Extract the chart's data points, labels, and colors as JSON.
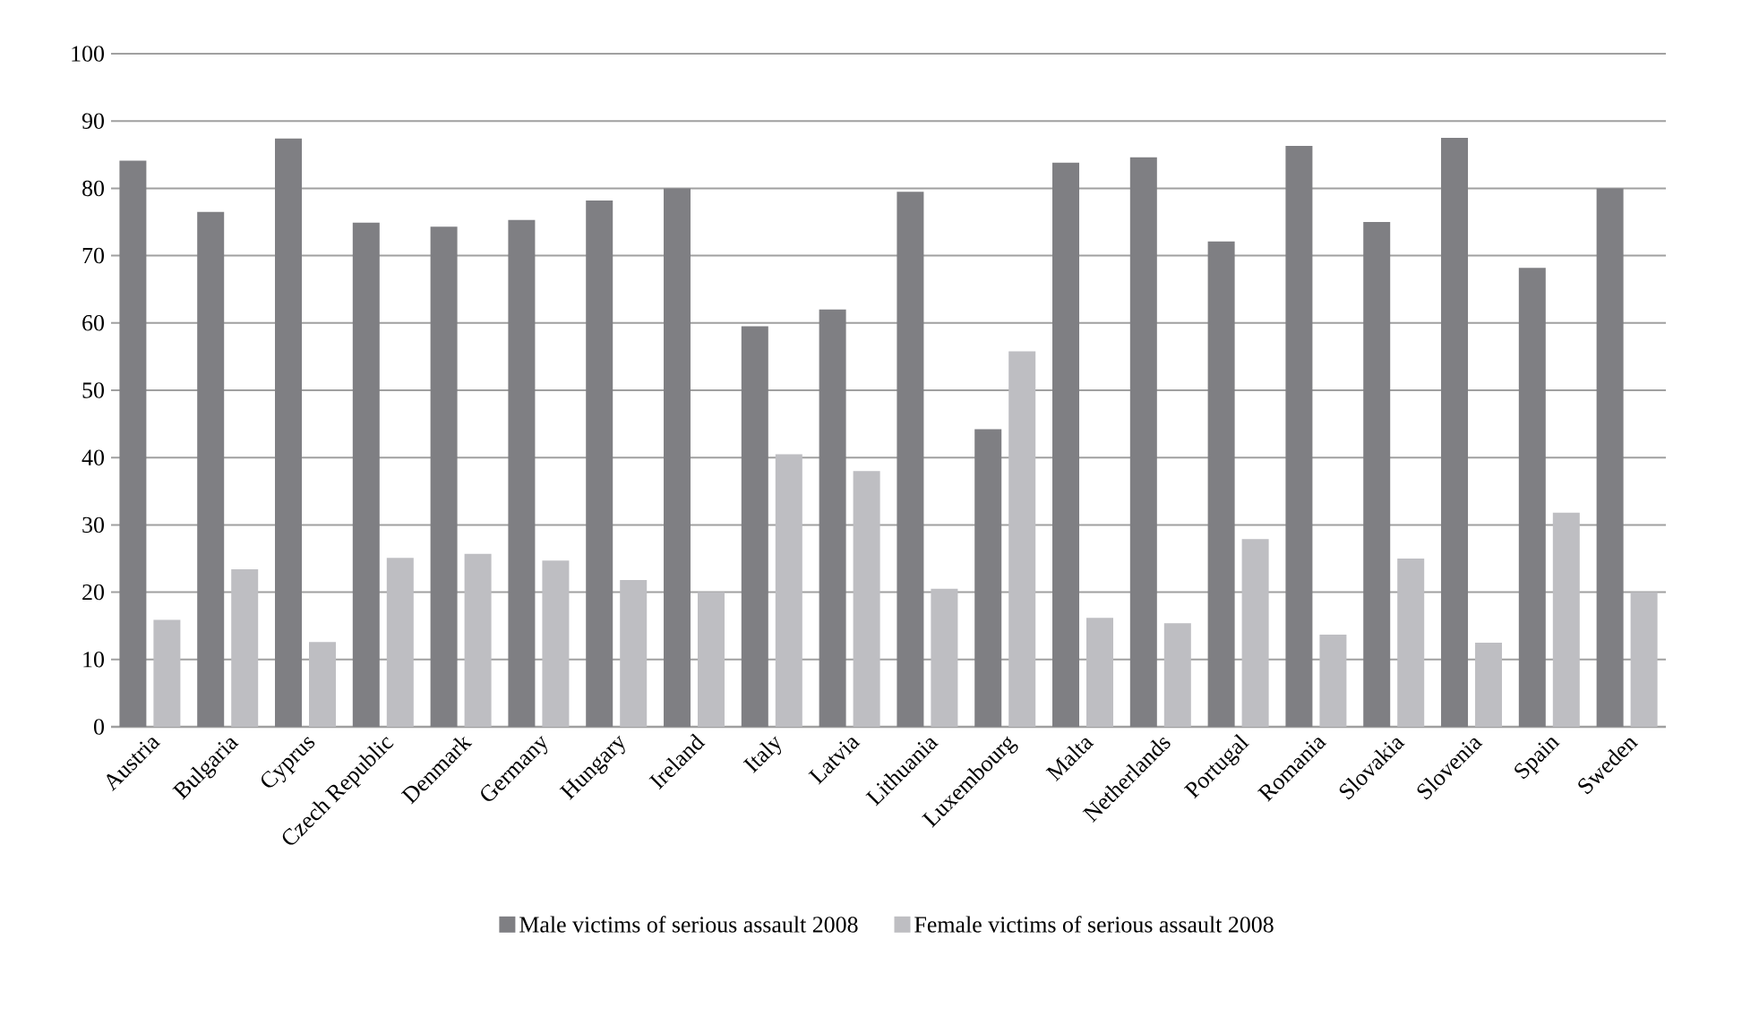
{
  "chart_data": {
    "type": "bar",
    "categories": [
      "Austria",
      "Bulgaria",
      "Cyprus",
      "Czech Republic",
      "Denmark",
      "Germany",
      "Hungary",
      "Ireland",
      "Italy",
      "Latvia",
      "Lithuania",
      "Luxembourg",
      "Malta",
      "Netherlands",
      "Portugal",
      "Romania",
      "Slovakia",
      "Slovenia",
      "Spain",
      "Sweden"
    ],
    "series": [
      {
        "name": "Male victims of serious assault 2008",
        "color": "#7f7f83",
        "values": [
          84.1,
          76.5,
          87.4,
          74.9,
          74.3,
          75.3,
          78.2,
          80.0,
          59.5,
          62.0,
          79.5,
          44.2,
          83.8,
          84.6,
          72.1,
          86.3,
          75.0,
          87.5,
          68.2,
          80.0
        ]
      },
      {
        "name": "Female victims of serious assault 2008",
        "color": "#bebec2",
        "values": [
          15.9,
          23.4,
          12.6,
          25.1,
          25.7,
          24.7,
          21.8,
          20.0,
          40.5,
          38.0,
          20.5,
          55.8,
          16.2,
          15.4,
          27.9,
          13.7,
          25.0,
          12.5,
          31.8,
          20.0
        ]
      }
    ],
    "ylim": [
      0,
      100
    ],
    "yticks": [
      0,
      10,
      20,
      30,
      40,
      50,
      60,
      70,
      80,
      90,
      100
    ],
    "grid": "y",
    "legend": "bottom"
  }
}
